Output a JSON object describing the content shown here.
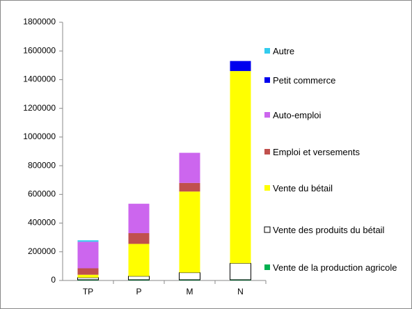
{
  "chart_data": {
    "type": "bar",
    "stacked": true,
    "categories": [
      "TP",
      "P",
      "M",
      "N"
    ],
    "series": [
      {
        "name": "Vente de la production agricole",
        "color": "#00b050",
        "values": [
          5000,
          5000,
          5000,
          5000
        ]
      },
      {
        "name": "Vente des produits du bétail",
        "color": "#ffffff",
        "values": [
          15000,
          25000,
          50000,
          115000
        ]
      },
      {
        "name": "Vente du bétail",
        "color": "#ffff00",
        "values": [
          20000,
          225000,
          565000,
          1340000
        ]
      },
      {
        "name": "Emploi et versements",
        "color": "#c0504d",
        "values": [
          45000,
          75000,
          60000,
          0
        ]
      },
      {
        "name": "Auto-emploi",
        "color": "#cc66ee",
        "values": [
          185000,
          205000,
          210000,
          0
        ]
      },
      {
        "name": "Petit commerce",
        "color": "#0000ee",
        "values": [
          0,
          0,
          0,
          70000
        ]
      },
      {
        "name": "Autre",
        "color": "#33ccee",
        "values": [
          10000,
          0,
          0,
          0
        ]
      }
    ],
    "ylim": [
      0,
      1800000
    ],
    "yticks": [
      0,
      200000,
      400000,
      600000,
      800000,
      1000000,
      1200000,
      1400000,
      1600000,
      1800000
    ],
    "grid": false,
    "legend": "right"
  }
}
